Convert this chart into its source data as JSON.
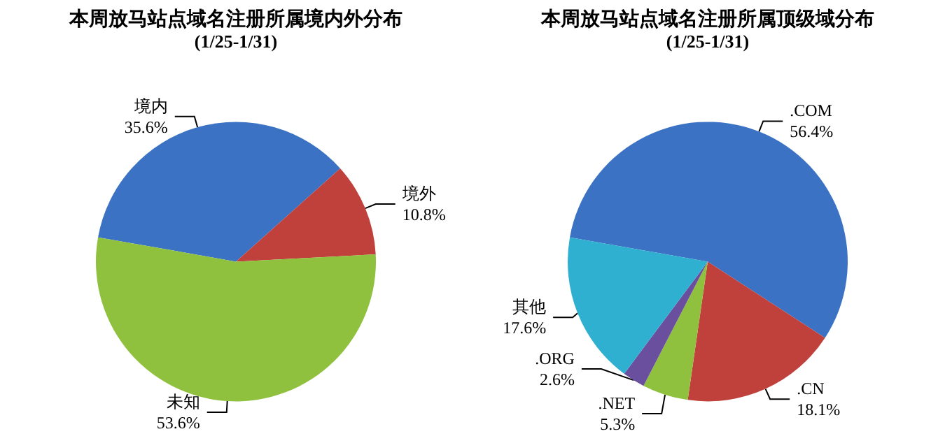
{
  "chart_data": [
    {
      "type": "pie",
      "title": "本周放马站点域名注册所属境内外分布",
      "subtitle": "(1/25-1/31)",
      "categories": [
        "境内",
        "境外",
        "未知"
      ],
      "values": [
        35.6,
        10.8,
        53.6
      ],
      "value_labels": [
        "35.6%",
        "10.8%",
        "53.6%"
      ],
      "colors": [
        "#3b72c4",
        "#c0413b",
        "#8fc13e"
      ],
      "legend": false
    },
    {
      "type": "pie",
      "title": "本周放马站点域名注册所属顶级域分布",
      "subtitle": "(1/25-1/31)",
      "categories": [
        ".COM",
        ".CN",
        ".NET",
        ".ORG",
        "其他"
      ],
      "values": [
        56.4,
        18.1,
        5.3,
        2.6,
        17.6
      ],
      "value_labels": [
        "56.4%",
        "18.1%",
        "5.3%",
        "2.6%",
        "17.6%"
      ],
      "colors": [
        "#3b72c4",
        "#c0413b",
        "#8fc13e",
        "#6b4f9f",
        "#2fb0d0"
      ],
      "legend": false
    }
  ]
}
